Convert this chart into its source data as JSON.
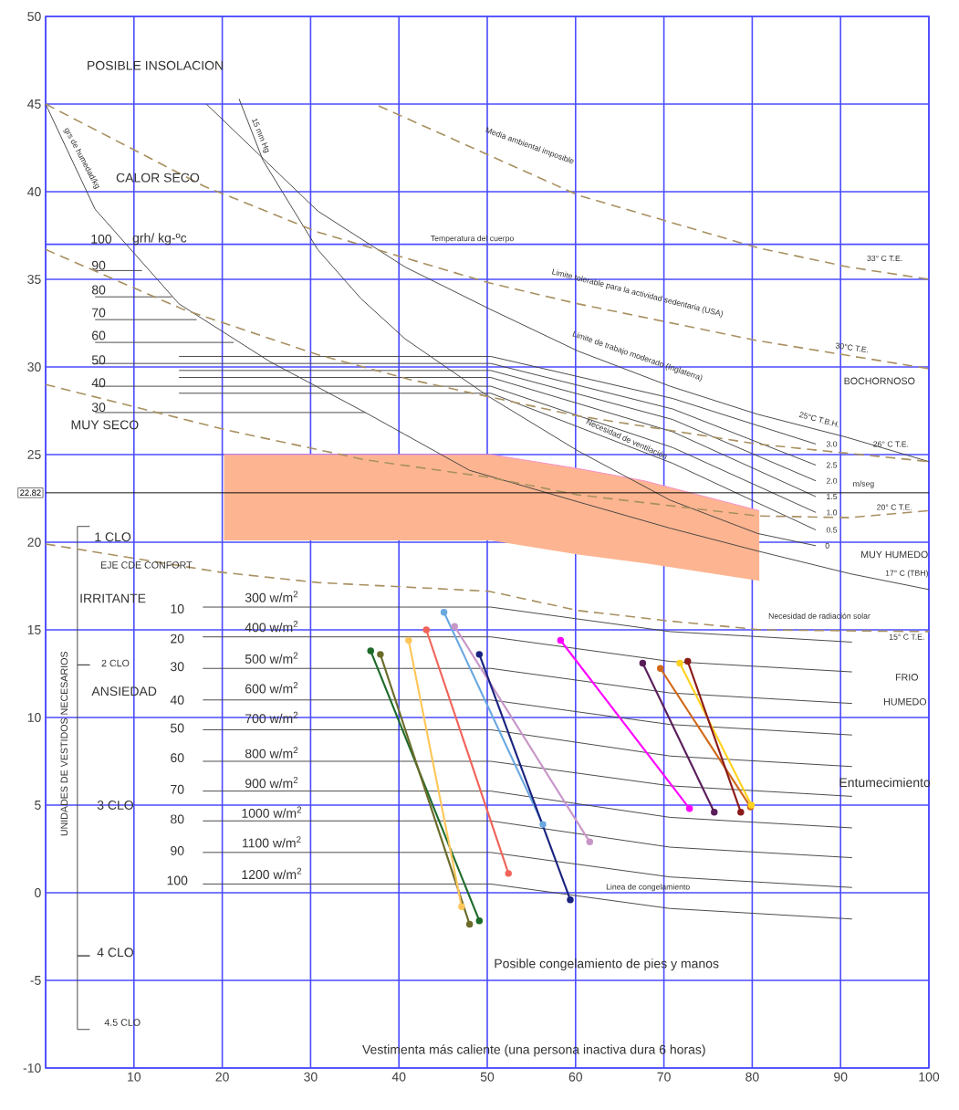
{
  "chart_data": {
    "type": "line",
    "xlim": [
      0,
      100
    ],
    "ylim": [
      -10,
      50
    ],
    "xticks": [
      {
        "value": 0,
        "label": null
      },
      10,
      20,
      30,
      40,
      50,
      60,
      70,
      80,
      90,
      100
    ],
    "yticks": [
      -10,
      -5,
      0,
      5,
      10,
      15,
      20,
      25,
      30,
      35,
      {
        "value": 37,
        "label": null
      },
      40,
      45,
      50
    ],
    "grid": true,
    "marker": "none",
    "line_style": "solid",
    "ref_lines": [
      {
        "axis": "y",
        "value": 22.82,
        "label": "22.82",
        "color": "#000000"
      }
    ],
    "series": [
      {
        "type": "line",
        "color": "#f68ccb",
        "x": [
          20.2,
          50.4,
          60.3,
          67.8,
          80.8
        ],
        "values": [
          25,
          25,
          24.2,
          23.5,
          21.8
        ],
        "lower": [
          20.1,
          20.1,
          19.3,
          18.8,
          17.8
        ],
        "upper": [
          25,
          25,
          24.2,
          23.5,
          21.8
        ]
      },
      {
        "color": "#404040",
        "x": [
          0,
          5.6,
          15.1,
          25.4,
          36.2,
          48,
          60.3,
          70.7,
          80.6,
          91.1,
          100
        ],
        "values": [
          45,
          39,
          33.6,
          30.3,
          27.4,
          24.1,
          22.3,
          20.8,
          19.5,
          18.2,
          17.3
        ]
      },
      {
        "color": "#404040",
        "x": [
          18.2,
          30.8,
          40.7,
          50.3,
          60.3,
          70.7,
          80.6,
          90.6,
          100
        ],
        "values": [
          45,
          38.9,
          35.7,
          33.3,
          30.9,
          28.9,
          27.3,
          26,
          24.6
        ]
      },
      {
        "color": "#404040",
        "x": [
          21.9,
          24.6,
          30.8,
          35.7,
          40.7,
          50.2,
          60.3,
          70.7,
          80.6,
          87.2
        ],
        "values": [
          45.3,
          41.8,
          36.7,
          33.9,
          31.6,
          28.3,
          25.2,
          22.4,
          20.5,
          19.8
        ]
      },
      {
        "color": "#404040",
        "x": [
          5.6,
          10.9
        ],
        "values": [
          35.5,
          35.5
        ]
      },
      {
        "color": "#404040",
        "x": [
          5.6,
          14.3
        ],
        "values": [
          34,
          34
        ]
      },
      {
        "color": "#404040",
        "x": [
          5.6,
          17.1
        ],
        "values": [
          32.7,
          32.7
        ]
      },
      {
        "color": "#404040",
        "x": [
          5.6,
          21.3
        ],
        "values": [
          31.4,
          31.4
        ]
      },
      {
        "color": "#404040",
        "x": [
          5.6,
          36.2
        ],
        "values": [
          27.4,
          27.4
        ]
      },
      {
        "color": "#404040",
        "x": [
          15.1,
          50.4,
          71,
          87.2
        ],
        "values": [
          30.6,
          30.6,
          28.2,
          25.6
        ]
      },
      {
        "color": "#404040",
        "x": [
          5.6,
          50.4,
          71,
          87.2
        ],
        "values": [
          30.2,
          30.2,
          27.6,
          24.4
        ]
      },
      {
        "color": "#404040",
        "x": [
          15.1,
          50.4,
          71,
          87.2
        ],
        "values": [
          29.8,
          29.8,
          27,
          23.5
        ]
      },
      {
        "color": "#404040",
        "x": [
          15.1,
          50.4,
          71,
          87.2
        ],
        "values": [
          29.4,
          29.4,
          26.3,
          22.6
        ]
      },
      {
        "color": "#404040",
        "x": [
          5.6,
          50.4,
          71,
          87.2
        ],
        "values": [
          28.9,
          28.9,
          25.4,
          21.7
        ]
      },
      {
        "color": "#404040",
        "x": [
          15.1,
          50.4,
          71,
          87.2
        ],
        "values": [
          28.5,
          28.5,
          24.5,
          20.7
        ]
      },
      {
        "color": "#404040",
        "x": [
          17.8,
          50.4,
          70.7,
          91.3
        ],
        "values": [
          16.3,
          16.3,
          14.9,
          14.3
        ]
      },
      {
        "color": "#404040",
        "x": [
          17.8,
          50.4,
          70.7,
          91.3
        ],
        "values": [
          14.6,
          14.6,
          13.2,
          12.6
        ]
      },
      {
        "color": "#404040",
        "x": [
          17.8,
          50.4,
          70.7,
          91.3
        ],
        "values": [
          12.8,
          12.8,
          11.4,
          10.8
        ]
      },
      {
        "color": "#404040",
        "x": [
          17.8,
          50.4,
          70.7,
          91.3
        ],
        "values": [
          11,
          11,
          9.6,
          9
        ]
      },
      {
        "color": "#404040",
        "x": [
          17.8,
          50.4,
          70.7,
          91.3
        ],
        "values": [
          9.3,
          9.3,
          7.8,
          7.2
        ]
      },
      {
        "color": "#404040",
        "x": [
          17.8,
          50.4,
          70.7,
          91.3
        ],
        "values": [
          7.5,
          7.5,
          6.1,
          5.5
        ]
      },
      {
        "color": "#404040",
        "x": [
          17.8,
          50.4,
          70.7,
          91.3
        ],
        "values": [
          5.8,
          5.8,
          4.3,
          3.7
        ]
      },
      {
        "color": "#404040",
        "x": [
          17.8,
          50.4,
          70.7,
          91.3
        ],
        "values": [
          4.1,
          4.1,
          2.6,
          2
        ]
      },
      {
        "color": "#404040",
        "x": [
          17.8,
          50.4,
          70.7,
          91.3
        ],
        "values": [
          2.3,
          2.3,
          0.9,
          0.3
        ]
      },
      {
        "color": "#404040",
        "x": [
          17.8,
          50.4,
          70.7,
          91.3
        ],
        "values": [
          0.5,
          0.5,
          -0.9,
          -1.5
        ]
      },
      {
        "color": "#404040",
        "x": [
          5,
          3.6,
          3.6,
          5,
          3.6,
          3.6,
          5,
          3.6,
          3.6,
          5
        ],
        "values": [
          20.9,
          20.9,
          13,
          13,
          13,
          -3.6,
          -3.6,
          -3.6,
          -7.8,
          -7.8
        ]
      },
      {
        "color": "#a89060",
        "line_style": "dashed",
        "x": [
          37.7,
          60.3,
          80.6,
          90.9,
          100
        ],
        "values": [
          44.9,
          39.8,
          36.8,
          35.7,
          35
        ]
      },
      {
        "color": "#a89060",
        "line_style": "dashed",
        "x": [
          0,
          18,
          30.8,
          50.2,
          60.3,
          80.6,
          100
        ],
        "values": [
          45,
          40.3,
          37.7,
          34.8,
          33.6,
          31.5,
          29.9
        ]
      },
      {
        "color": "#a89060",
        "line_style": "dashed",
        "x": [
          0,
          15.5,
          30.8,
          41.1,
          50.2,
          60.3,
          80.6,
          100
        ],
        "values": [
          36.7,
          33.3,
          30.7,
          29.3,
          28.3,
          27.2,
          25.6,
          24.6
        ]
      },
      {
        "color": "#a89060",
        "line_style": "dashed",
        "x": [
          0,
          20.5,
          36.2,
          50.2,
          60.3,
          80.6,
          90.9,
          100
        ],
        "values": [
          29,
          26.4,
          24.7,
          23.7,
          22.7,
          21.5,
          21.4,
          21.8
        ]
      },
      {
        "color": "#a89060",
        "line_style": "dashed",
        "x": [
          0,
          19.6,
          30.8,
          50.2,
          60.3,
          70.7,
          81,
          100
        ],
        "values": [
          19.9,
          18.3,
          17.7,
          17.2,
          16.1,
          15.5,
          15,
          14.9
        ]
      },
      {
        "color": "#1e6b2a",
        "marker": "circle",
        "x": [
          36.8,
          49.1
        ],
        "values": [
          13.8,
          -1.6
        ]
      },
      {
        "color": "#6b6b2a",
        "marker": "circle",
        "x": [
          37.9,
          48
        ],
        "values": [
          13.6,
          -1.8
        ]
      },
      {
        "color": "#ffc65a",
        "marker": "circle",
        "x": [
          41.1,
          47.1
        ],
        "values": [
          14.4,
          -0.8
        ]
      },
      {
        "color": "#f0645a",
        "marker": "circle",
        "x": [
          43.1,
          52.4
        ],
        "values": [
          15,
          1.1
        ]
      },
      {
        "color": "#6aa8e0",
        "marker": "circle",
        "x": [
          45.1,
          56.3
        ],
        "values": [
          16,
          3.9
        ]
      },
      {
        "color": "#c896c8",
        "marker": "circle",
        "x": [
          46.3,
          61.6
        ],
        "values": [
          15.2,
          2.9
        ]
      },
      {
        "color": "#1a237e",
        "marker": "circle",
        "x": [
          49.1,
          59.4
        ],
        "values": [
          13.6,
          -0.4
        ]
      },
      {
        "color": "#ff00ff",
        "marker": "circle",
        "x": [
          58.3,
          72.9
        ],
        "values": [
          14.4,
          4.8
        ]
      },
      {
        "color": "#5a1e5a",
        "marker": "circle",
        "x": [
          67.6,
          75.7
        ],
        "values": [
          13.1,
          4.6
        ]
      },
      {
        "color": "#d06a1a",
        "marker": "circle",
        "x": [
          69.6,
          79.8
        ],
        "values": [
          12.8,
          4.9
        ]
      },
      {
        "color": "#ffd21e",
        "marker": "circle",
        "x": [
          71.8,
          79.9
        ],
        "values": [
          13.1,
          5
        ]
      },
      {
        "color": "#8b1a1a",
        "marker": "circle",
        "x": [
          72.7,
          78.7
        ],
        "values": [
          13.2,
          4.6
        ]
      }
    ],
    "annotations": [
      "POSIBLE INSOLACION",
      "CALOR SECO",
      "100",
      "grh/ kg-ºc",
      "90",
      "80",
      "70",
      "60",
      "50",
      "40",
      "30",
      "MUY SECO",
      "grs de humedad/kg",
      "15 mm Hg",
      "Media ambiental imposible",
      "Temperatura del cuerpo",
      "Limite tolerable para la actividad sedentaria (USA)",
      "Limite de trabajo moderado (Inglaterra)",
      "33° C   T.E.",
      "30°C   T.E.",
      "BOCHORNOSO",
      "25°C   T.B.H.",
      "26° C  T.E.",
      "Necesidad de ventilación",
      "m/seg",
      "3.0",
      "2.5",
      "2.0",
      "1.5",
      "1.0",
      "0.5",
      "0",
      "20° C  T.E.",
      "MUY HUMEDO",
      "17° C  (TBH)",
      "Necesidad de radiación solar",
      "15° C  T.E.",
      "FRIO",
      "HUMEDO",
      "Entumecimiento",
      "Linea de congelamiento",
      "Posible congelamiento de pies y manos",
      "Vestimenta más caliente (una persona inactiva dura 6 horas)",
      "1  CLO",
      "EJE CDE CONFORT",
      "IRRITANTE",
      "2  CLO",
      "ANSIEDAD",
      "3  CLO",
      "4  CLO",
      "4.5  CLO",
      "UNIDADES DE VESTIDOS NECESARIOS",
      "10",
      "20",
      "30",
      "40",
      "50",
      "60",
      "70",
      "80",
      "90",
      "100",
      "300  w/m$^{2}$",
      "400  w/m$^{2}$",
      "500  w/m$^{2}$",
      "600  w/m$^{2}$",
      "700  w/m$^{2}$",
      "800  w/m$^{2}$",
      "900  w/m$^{2}$",
      "1000  w/m$^{2}$",
      "1100  w/m$^{2}$",
      "1200  w/m$^{2}$"
    ]
  }
}
